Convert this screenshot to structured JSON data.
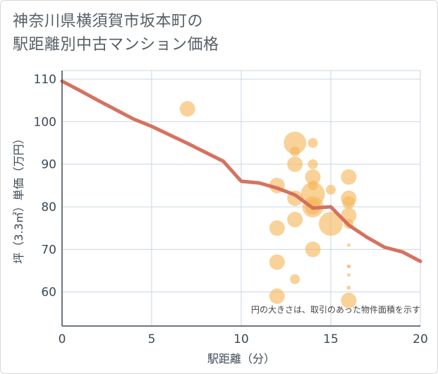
{
  "title_lines": [
    "神奈川県横須賀市坂本町の",
    "駅距離別中古マンション価格"
  ],
  "chart_data": {
    "type": "scatter",
    "title": "神奈川県横須賀市坂本町の駅距離別中古マンション価格",
    "xlabel": "駅距離（分）",
    "ylabel": "坪（3.3㎡）単価（万円）",
    "xlim": [
      0,
      20
    ],
    "ylim": [
      52,
      112
    ],
    "xticks": [
      0,
      5,
      10,
      15,
      20
    ],
    "yticks": [
      60,
      70,
      80,
      90,
      100,
      110
    ],
    "grid": true,
    "note": "円の大きさは、取引のあった物件面積を示す",
    "colors": {
      "bubble": "#f5b75a",
      "line": "#d46a57",
      "grid": "#c9d6e3",
      "axis": "#3d4a56"
    },
    "scatter_points": [
      {
        "x": 7,
        "y": 103,
        "size": 11
      },
      {
        "x": 12,
        "y": 85,
        "size": 11
      },
      {
        "x": 12,
        "y": 75,
        "size": 11
      },
      {
        "x": 12,
        "y": 67,
        "size": 11
      },
      {
        "x": 12,
        "y": 59,
        "size": 11
      },
      {
        "x": 13,
        "y": 95,
        "size": 16
      },
      {
        "x": 13,
        "y": 93,
        "size": 7
      },
      {
        "x": 13,
        "y": 90,
        "size": 11
      },
      {
        "x": 13,
        "y": 82,
        "size": 11
      },
      {
        "x": 13,
        "y": 77,
        "size": 11
      },
      {
        "x": 13,
        "y": 63,
        "size": 7
      },
      {
        "x": 14,
        "y": 95,
        "size": 7
      },
      {
        "x": 14,
        "y": 90,
        "size": 7
      },
      {
        "x": 14,
        "y": 87,
        "size": 11
      },
      {
        "x": 14,
        "y": 85,
        "size": 7
      },
      {
        "x": 14,
        "y": 83,
        "size": 17
      },
      {
        "x": 14,
        "y": 80,
        "size": 15
      },
      {
        "x": 14,
        "y": 80,
        "size": 11
      },
      {
        "x": 14,
        "y": 70,
        "size": 11
      },
      {
        "x": 15,
        "y": 84,
        "size": 7
      },
      {
        "x": 15,
        "y": 76,
        "size": 17
      },
      {
        "x": 16,
        "y": 87,
        "size": 11
      },
      {
        "x": 16,
        "y": 82,
        "size": 11
      },
      {
        "x": 16,
        "y": 81,
        "size": 9
      },
      {
        "x": 16,
        "y": 78,
        "size": 11
      },
      {
        "x": 16,
        "y": 76,
        "size": 7
      },
      {
        "x": 16,
        "y": 71,
        "size": 2.5
      },
      {
        "x": 16,
        "y": 66,
        "size": 2.5
      },
      {
        "x": 16,
        "y": 66,
        "size": 2.5
      },
      {
        "x": 16,
        "y": 64,
        "size": 2.5
      },
      {
        "x": 16,
        "y": 61,
        "size": 3
      },
      {
        "x": 16,
        "y": 58,
        "size": 11
      }
    ],
    "trend_line": {
      "x": [
        0,
        1,
        2,
        3,
        4,
        5,
        6,
        7,
        8,
        9,
        10,
        11,
        12,
        13,
        14,
        15,
        16,
        17,
        18,
        19,
        20
      ],
      "y": [
        109.5,
        107.3,
        105.0,
        102.8,
        100.6,
        98.9,
        96.9,
        94.9,
        92.8,
        90.7,
        86.0,
        85.6,
        84.4,
        82.8,
        79.7,
        80.0,
        75.7,
        72.9,
        70.5,
        69.4,
        67.2
      ]
    }
  }
}
